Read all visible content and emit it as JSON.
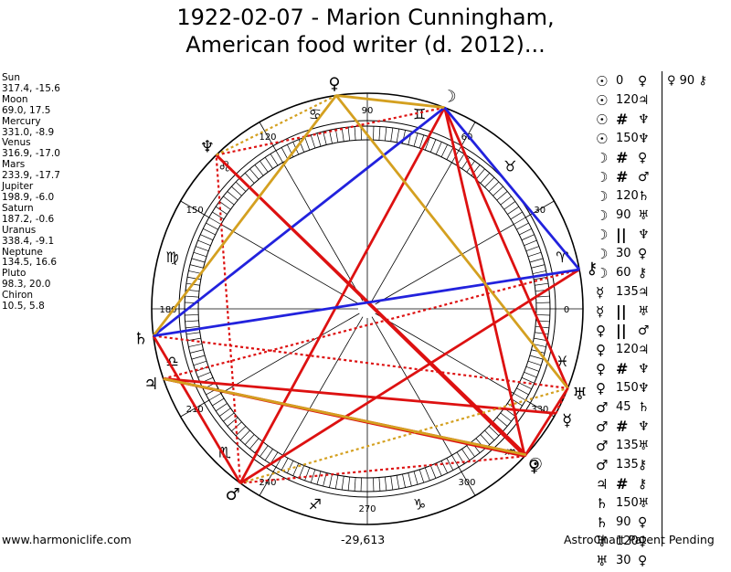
{
  "title": {
    "line1": "1922-02-07 - Marion Cunningham,",
    "line2": "American food writer (d. 2012)..."
  },
  "planets": [
    {
      "name": "Sun",
      "values": "317.4, -15.6"
    },
    {
      "name": "Moon",
      "values": "69.0, 17.5"
    },
    {
      "name": "Mercury",
      "values": "331.0, -8.9"
    },
    {
      "name": "Venus",
      "values": "316.9, -17.0"
    },
    {
      "name": "Mars",
      "values": "233.9, -17.7"
    },
    {
      "name": "Jupiter",
      "values": "198.9, -6.0"
    },
    {
      "name": "Saturn",
      "values": "187.2, -0.6"
    },
    {
      "name": "Uranus",
      "values": "338.4, -9.1"
    },
    {
      "name": "Neptune",
      "values": "134.5, 16.6"
    },
    {
      "name": "Pluto",
      "values": "98.3, 20.0"
    },
    {
      "name": "Chiron",
      "values": "10.5, 5.8"
    }
  ],
  "aspects": [
    {
      "p1": "☉",
      "angle": "0",
      "p2": "♀"
    },
    {
      "p1": "☉",
      "angle": "120",
      "p2": "♃"
    },
    {
      "p1": "☉",
      "angle": "#",
      "p2": "♆"
    },
    {
      "p1": "☉",
      "angle": "150",
      "p2": "♆"
    },
    {
      "p1": "☽",
      "angle": "#",
      "p2": "♀"
    },
    {
      "p1": "☽",
      "angle": "#",
      "p2": "♂"
    },
    {
      "p1": "☽",
      "angle": "120",
      "p2": "♄"
    },
    {
      "p1": "☽",
      "angle": "90",
      "p2": "♅"
    },
    {
      "p1": "☽",
      "angle": "||",
      "p2": "♆"
    },
    {
      "p1": "☽",
      "angle": "30",
      "p2": "♀"
    },
    {
      "p1": "☽",
      "angle": "60",
      "p2": "⚷"
    },
    {
      "p1": "☿",
      "angle": "135",
      "p2": "♃"
    },
    {
      "p1": "☿",
      "angle": "||",
      "p2": "♅"
    },
    {
      "p1": "♀",
      "angle": "||",
      "p2": "♂"
    },
    {
      "p1": "♀",
      "angle": "120",
      "p2": "♃"
    },
    {
      "p1": "♀",
      "angle": "#",
      "p2": "♆"
    },
    {
      "p1": "♀",
      "angle": "150",
      "p2": "♆"
    },
    {
      "p1": "♂",
      "angle": "45",
      "p2": "♄"
    },
    {
      "p1": "♂",
      "angle": "#",
      "p2": "♆"
    },
    {
      "p1": "♂",
      "angle": "135",
      "p2": "♅"
    },
    {
      "p1": "♂",
      "angle": "135",
      "p2": "⚷"
    },
    {
      "p1": "♃",
      "angle": "#",
      "p2": "⚷"
    },
    {
      "p1": "♄",
      "angle": "150",
      "p2": "♅"
    },
    {
      "p1": "♄",
      "angle": "90",
      "p2": "♀"
    },
    {
      "p1": "♅",
      "angle": "120",
      "p2": "♀"
    },
    {
      "p1": "♅",
      "angle": "30",
      "p2": "♀"
    }
  ],
  "aspect_side": "♀ 90 ⚷",
  "degree_labels": [
    {
      "label": "0",
      "deg": 0
    },
    {
      "label": "30",
      "deg": 30
    },
    {
      "label": "60",
      "deg": 60
    },
    {
      "label": "90",
      "deg": 90
    },
    {
      "label": "120",
      "deg": 120
    },
    {
      "label": "150",
      "deg": 150
    },
    {
      "label": "180",
      "deg": 180
    },
    {
      "label": "210",
      "deg": 210
    },
    {
      "label": "240",
      "deg": 240
    },
    {
      "label": "270",
      "deg": 270
    },
    {
      "label": "300",
      "deg": 300
    },
    {
      "label": "330",
      "deg": 330
    }
  ],
  "zodiac_signs": [
    "♈",
    "♉",
    "♊",
    "♋",
    "♌",
    "♍",
    "♎",
    "♏",
    "♐",
    "♑",
    "♒",
    "♓"
  ],
  "wheel_planets": [
    {
      "symbol": "☉",
      "name": "Sun",
      "lon": 317.4
    },
    {
      "symbol": "☽",
      "name": "Moon",
      "lon": 69.0
    },
    {
      "symbol": "☿",
      "name": "Mercury",
      "lon": 331.0
    },
    {
      "symbol": "♀",
      "name": "Venus",
      "lon": 316.9
    },
    {
      "symbol": "♂",
      "name": "Mars",
      "lon": 233.9
    },
    {
      "symbol": "♃",
      "name": "Jupiter",
      "lon": 198.9
    },
    {
      "symbol": "♄",
      "name": "Saturn",
      "lon": 187.2
    },
    {
      "symbol": "♅",
      "name": "Uranus",
      "lon": 338.4
    },
    {
      "symbol": "♆",
      "name": "Neptune",
      "lon": 134.5
    },
    {
      "symbol": "♀",
      "name": "Pluto",
      "lon": 98.3
    },
    {
      "symbol": "⚷",
      "name": "Chiron",
      "lon": 10.5
    }
  ],
  "aspect_lines": [
    {
      "a": "Sun",
      "b": "Jupiter",
      "color": "#dd1111",
      "style": "solid"
    },
    {
      "a": "Sun",
      "b": "Neptune",
      "color": "#dd1111",
      "style": "solid"
    },
    {
      "a": "Moon",
      "b": "Venus",
      "color": "#dd1111",
      "style": "solid"
    },
    {
      "a": "Moon",
      "b": "Mars",
      "color": "#dd1111",
      "style": "solid"
    },
    {
      "a": "Moon",
      "b": "Saturn",
      "color": "#2222dd",
      "style": "solid"
    },
    {
      "a": "Moon",
      "b": "Uranus",
      "color": "#dd1111",
      "style": "solid"
    },
    {
      "a": "Moon",
      "b": "Neptune",
      "color": "#dd1111",
      "style": "dotted"
    },
    {
      "a": "Moon",
      "b": "Pluto",
      "color": "#d4a020",
      "style": "solid"
    },
    {
      "a": "Moon",
      "b": "Chiron",
      "color": "#2222dd",
      "style": "solid"
    },
    {
      "a": "Mercury",
      "b": "Jupiter",
      "color": "#dd1111",
      "style": "solid"
    },
    {
      "a": "Mercury",
      "b": "Uranus",
      "color": "#dd1111",
      "style": "dotted"
    },
    {
      "a": "Venus",
      "b": "Mars",
      "color": "#dd1111",
      "style": "dotted"
    },
    {
      "a": "Venus",
      "b": "Jupiter",
      "color": "#dd1111",
      "style": "solid"
    },
    {
      "a": "Venus",
      "b": "Neptune",
      "color": "#dd1111",
      "style": "solid"
    },
    {
      "a": "Mars",
      "b": "Saturn",
      "color": "#dd1111",
      "style": "solid"
    },
    {
      "a": "Mars",
      "b": "Neptune",
      "color": "#dd1111",
      "style": "dotted"
    },
    {
      "a": "Mars",
      "b": "Uranus",
      "color": "#d4a020",
      "style": "dotted"
    },
    {
      "a": "Mars",
      "b": "Chiron",
      "color": "#dd1111",
      "style": "solid"
    },
    {
      "a": "Jupiter",
      "b": "Chiron",
      "color": "#dd1111",
      "style": "dotted"
    },
    {
      "a": "Saturn",
      "b": "Uranus",
      "color": "#dd1111",
      "style": "dotted"
    },
    {
      "a": "Saturn",
      "b": "Pluto",
      "color": "#d4a020",
      "style": "solid"
    },
    {
      "a": "Saturn",
      "b": "Chiron",
      "color": "#2222dd",
      "style": "solid"
    },
    {
      "a": "Uranus",
      "b": "Pluto",
      "color": "#d4a020",
      "style": "solid"
    },
    {
      "a": "Uranus",
      "b": "Venus",
      "color": "#dd1111",
      "style": "solid"
    },
    {
      "a": "Jupiter",
      "b": "Sun",
      "color": "#d4a020",
      "style": "solid"
    },
    {
      "a": "Neptune",
      "b": "Pluto",
      "color": "#d4a020",
      "style": "dotted"
    }
  ],
  "footer": {
    "left": "www.harmoniclife.com",
    "center": "-29,613",
    "right": "AstroChart Patent Pending"
  }
}
